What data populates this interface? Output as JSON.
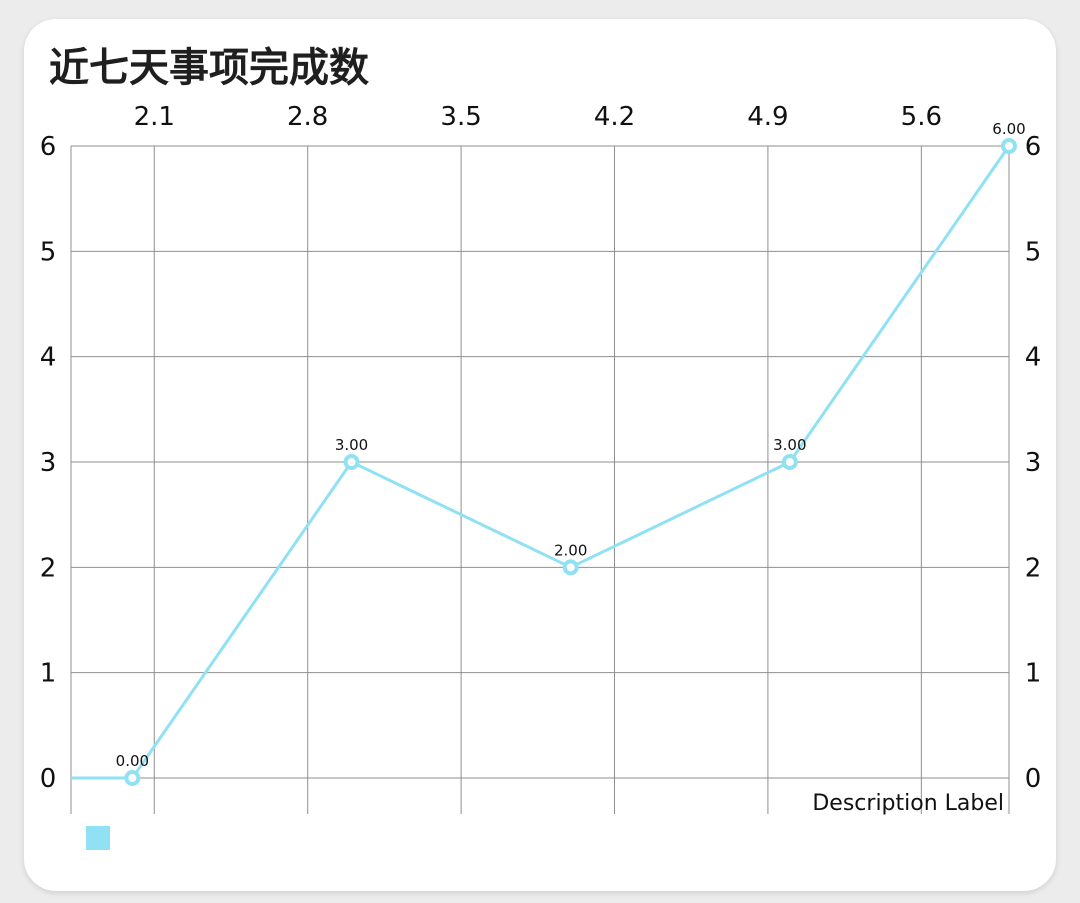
{
  "chart_data": {
    "type": "line",
    "title": "近七天事项完成数",
    "description": "Description Label",
    "x_ticks": [
      "2.1",
      "2.8",
      "3.5",
      "4.2",
      "4.9",
      "5.6"
    ],
    "x_tick_values": [
      2.1,
      2.8,
      3.5,
      4.2,
      4.9,
      5.6
    ],
    "xlim": [
      1.72,
      6.0
    ],
    "ylim": [
      0,
      6
    ],
    "y_ticks": [
      "0",
      "1",
      "2",
      "3",
      "4",
      "5",
      "6"
    ],
    "series": [
      {
        "color": "#8fe1f3",
        "points": [
          {
            "x": 2.0,
            "y": 0,
            "label": "0.00"
          },
          {
            "x": 3.0,
            "y": 3,
            "label": "3.00"
          },
          {
            "x": 4.0,
            "y": 2,
            "label": "2.00"
          },
          {
            "x": 5.0,
            "y": 3,
            "label": "3.00"
          },
          {
            "x": 6.0,
            "y": 6,
            "label": "6.00"
          }
        ]
      }
    ],
    "grid": true,
    "legend": "bottom-left"
  }
}
